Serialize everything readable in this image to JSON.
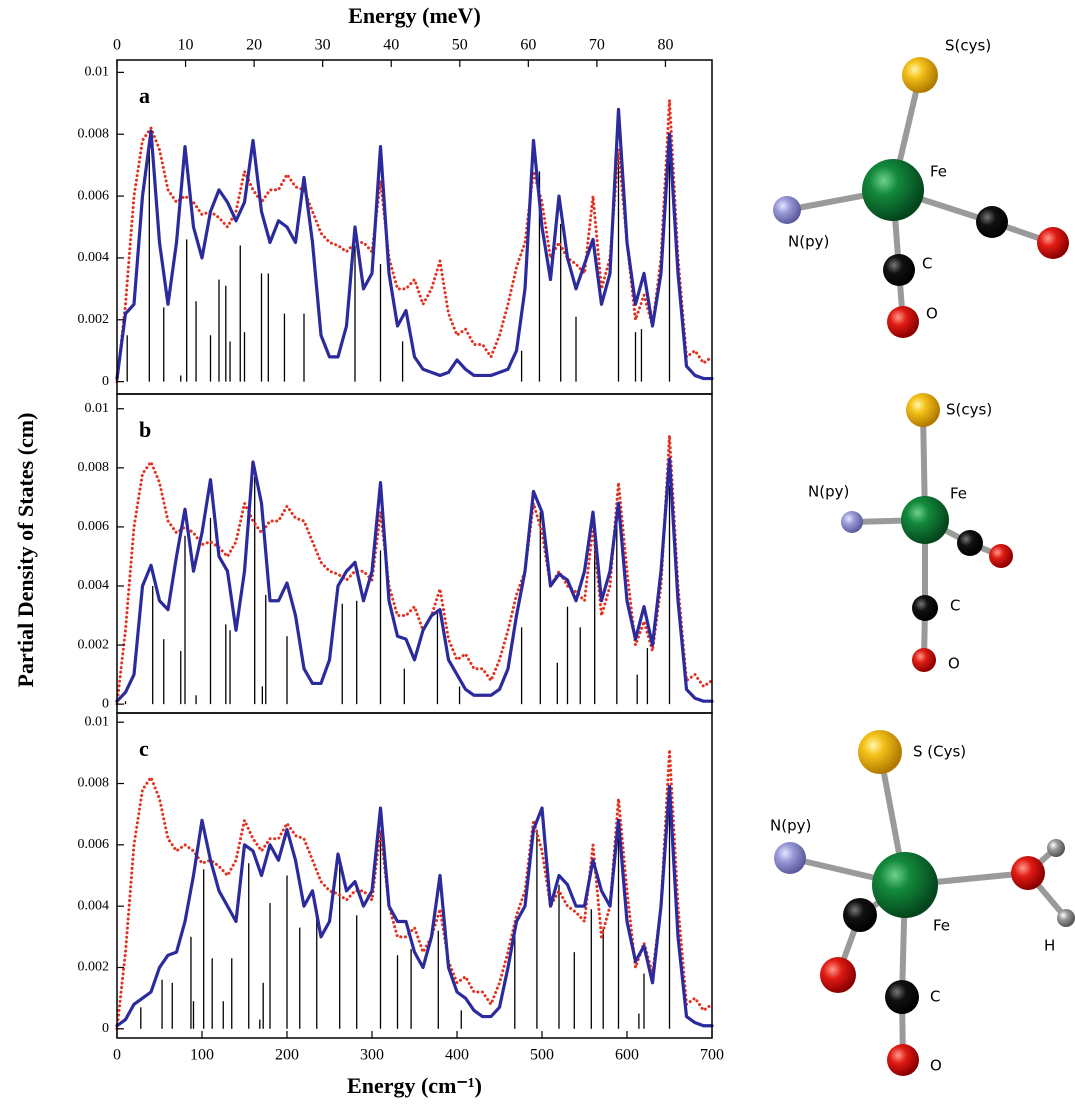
{
  "figure": {
    "ylabel": "Partial Density of States (cm)"
  },
  "chart_data": [
    {
      "type": "line",
      "title": "a",
      "x2label": "Energy (meV)",
      "x2lim": [
        0,
        86.79
      ],
      "x2ticks": [
        0,
        10,
        20,
        30,
        40,
        50,
        60,
        70,
        80
      ],
      "xlim": [
        0,
        700
      ],
      "ylim": [
        -0.0004,
        0.0104
      ],
      "yticks": [
        0,
        0.002,
        0.004,
        0.006,
        0.008,
        0.01
      ],
      "x": [
        0,
        10,
        20,
        30,
        40,
        50,
        60,
        70,
        80,
        90,
        100,
        110,
        120,
        130,
        140,
        150,
        160,
        170,
        180,
        190,
        200,
        210,
        220,
        230,
        240,
        250,
        260,
        270,
        280,
        290,
        300,
        310,
        320,
        330,
        340,
        350,
        360,
        370,
        380,
        390,
        400,
        410,
        420,
        430,
        440,
        450,
        460,
        470,
        480,
        490,
        500,
        510,
        520,
        530,
        540,
        550,
        560,
        570,
        580,
        590,
        600,
        610,
        620,
        630,
        640,
        650,
        660,
        670,
        680,
        690,
        700
      ],
      "series": [
        {
          "color": "#2b2b9e",
          "style": "solid",
          "values": [
            0.0001,
            0.0022,
            0.0025,
            0.006,
            0.0081,
            0.0045,
            0.0025,
            0.0045,
            0.0076,
            0.005,
            0.004,
            0.0055,
            0.0062,
            0.0058,
            0.0052,
            0.0058,
            0.0078,
            0.0055,
            0.0045,
            0.0052,
            0.005,
            0.0045,
            0.0066,
            0.0045,
            0.0015,
            0.0008,
            0.0008,
            0.0018,
            0.005,
            0.003,
            0.0035,
            0.0076,
            0.0035,
            0.0018,
            0.0023,
            0.0008,
            0.0004,
            0.0003,
            0.0002,
            0.0003,
            0.0007,
            0.0004,
            0.0002,
            0.0002,
            0.0002,
            0.0003,
            0.0004,
            0.001,
            0.003,
            0.0078,
            0.005,
            0.0033,
            0.006,
            0.004,
            0.003,
            0.0038,
            0.0046,
            0.0025,
            0.0035,
            0.0088,
            0.0045,
            0.0025,
            0.0035,
            0.0018,
            0.0035,
            0.008,
            0.0035,
            0.0005,
            0.0002,
            0.0001,
            0.0001
          ]
        },
        {
          "color": "#e3321f",
          "style": "dotted",
          "values": [
            0,
            0.0025,
            0.006,
            0.0078,
            0.0082,
            0.0075,
            0.0062,
            0.0058,
            0.006,
            0.0058,
            0.0054,
            0.0055,
            0.0053,
            0.005,
            0.0055,
            0.0068,
            0.0062,
            0.0058,
            0.0062,
            0.0062,
            0.0067,
            0.0063,
            0.0062,
            0.0055,
            0.0048,
            0.0045,
            0.0044,
            0.0042,
            0.0045,
            0.0045,
            0.0042,
            0.0065,
            0.004,
            0.003,
            0.003,
            0.0033,
            0.0025,
            0.003,
            0.0039,
            0.0022,
            0.0015,
            0.0017,
            0.0012,
            0.0012,
            0.0008,
            0.0015,
            0.0025,
            0.0037,
            0.0045,
            0.0068,
            0.0058,
            0.004,
            0.0045,
            0.004,
            0.0038,
            0.0035,
            0.006,
            0.003,
            0.004,
            0.0075,
            0.0045,
            0.002,
            0.0028,
            0.0018,
            0.004,
            0.0091,
            0.004,
            0.0008,
            0.001,
            0.0006,
            0.0008
          ]
        }
      ],
      "sticks": {
        "color": "#000000",
        "x": [
          12,
          38,
          55,
          75,
          82,
          93,
          110,
          120,
          128,
          133,
          145,
          150,
          170,
          178,
          197,
          220,
          280,
          310,
          336,
          476,
          497,
          522,
          540,
          590,
          610,
          617,
          650
        ],
        "values": [
          0.0015,
          0.0075,
          0.0024,
          0.0002,
          0.0046,
          0.0026,
          0.0015,
          0.0033,
          0.0031,
          0.0013,
          0.0044,
          0.0016,
          0.0035,
          0.0035,
          0.0022,
          0.0022,
          0.0044,
          0.0038,
          0.0013,
          0.001,
          0.0068,
          0.0051,
          0.0021,
          0.0073,
          0.0016,
          0.0017,
          0.0079
        ]
      }
    },
    {
      "type": "line",
      "title": "b",
      "xlim": [
        0,
        700
      ],
      "ylim": [
        -0.0003,
        0.0105
      ],
      "yticks": [
        0,
        0.002,
        0.004,
        0.006,
        0.008,
        0.01
      ],
      "x": [
        0,
        10,
        20,
        30,
        40,
        50,
        60,
        70,
        80,
        90,
        100,
        110,
        120,
        130,
        140,
        150,
        160,
        170,
        180,
        190,
        200,
        210,
        220,
        230,
        240,
        250,
        260,
        270,
        280,
        290,
        300,
        310,
        320,
        330,
        340,
        350,
        360,
        370,
        380,
        390,
        400,
        410,
        420,
        430,
        440,
        450,
        460,
        470,
        480,
        490,
        500,
        510,
        520,
        530,
        540,
        550,
        560,
        570,
        580,
        590,
        600,
        610,
        620,
        630,
        640,
        650,
        660,
        670,
        680,
        690,
        700
      ],
      "series": [
        {
          "color": "#2b2b9e",
          "style": "solid",
          "values": [
            0.0001,
            0.0004,
            0.001,
            0.004,
            0.0047,
            0.0035,
            0.0032,
            0.005,
            0.0066,
            0.0045,
            0.0058,
            0.0076,
            0.005,
            0.0045,
            0.0025,
            0.0045,
            0.0082,
            0.0068,
            0.0035,
            0.0035,
            0.0041,
            0.003,
            0.0012,
            0.0007,
            0.0007,
            0.0015,
            0.004,
            0.0045,
            0.0048,
            0.0035,
            0.0045,
            0.0075,
            0.0035,
            0.0023,
            0.0022,
            0.0015,
            0.0025,
            0.003,
            0.0032,
            0.0015,
            0.001,
            0.0005,
            0.0003,
            0.0003,
            0.0003,
            0.0005,
            0.0012,
            0.003,
            0.0045,
            0.0072,
            0.0065,
            0.004,
            0.0044,
            0.0042,
            0.0035,
            0.0045,
            0.0065,
            0.0035,
            0.0045,
            0.0068,
            0.0035,
            0.0022,
            0.0033,
            0.002,
            0.0045,
            0.0083,
            0.0035,
            0.0005,
            0.0002,
            0.0001,
            0.0001
          ]
        },
        {
          "color": "#e3321f",
          "style": "dotted",
          "values": [
            0,
            0.0025,
            0.006,
            0.0078,
            0.0082,
            0.0075,
            0.0062,
            0.0058,
            0.006,
            0.0058,
            0.0054,
            0.0055,
            0.0053,
            0.005,
            0.0055,
            0.0068,
            0.0062,
            0.0058,
            0.0062,
            0.0062,
            0.0067,
            0.0063,
            0.0062,
            0.0055,
            0.0048,
            0.0045,
            0.0044,
            0.0042,
            0.0045,
            0.0045,
            0.0042,
            0.0065,
            0.004,
            0.003,
            0.003,
            0.0033,
            0.0025,
            0.003,
            0.0039,
            0.0022,
            0.0015,
            0.0017,
            0.0012,
            0.0012,
            0.0008,
            0.0015,
            0.0025,
            0.0037,
            0.0045,
            0.0068,
            0.0058,
            0.004,
            0.0045,
            0.004,
            0.0038,
            0.0035,
            0.006,
            0.003,
            0.004,
            0.0075,
            0.0045,
            0.002,
            0.0028,
            0.0018,
            0.004,
            0.0091,
            0.004,
            0.0008,
            0.001,
            0.0006,
            0.0008
          ]
        }
      ],
      "sticks": {
        "color": "#000000",
        "x": [
          10,
          42,
          55,
          75,
          80,
          93,
          110,
          128,
          133,
          162,
          171,
          175,
          200,
          265,
          282,
          310,
          338,
          377,
          403,
          476,
          498,
          518,
          530,
          545,
          562,
          588,
          612,
          624,
          650
        ],
        "values": [
          0.0001,
          0.004,
          0.0022,
          0.0018,
          0.0057,
          0.0003,
          0.0063,
          0.0027,
          0.0025,
          0.0077,
          0.0006,
          0.0037,
          0.0023,
          0.0034,
          0.0035,
          0.0052,
          0.0012,
          0.0032,
          0.0006,
          0.0026,
          0.0065,
          0.0014,
          0.0033,
          0.0026,
          0.0058,
          0.0064,
          0.001,
          0.0019,
          0.0074
        ]
      }
    },
    {
      "type": "line",
      "title": "c",
      "xlabel": "Energy (cm⁻¹)",
      "xlim": [
        0,
        700
      ],
      "xticks": [
        0,
        100,
        200,
        300,
        400,
        500,
        600,
        700
      ],
      "ylim": [
        -0.0003,
        0.0103
      ],
      "yticks": [
        0,
        0.002,
        0.004,
        0.006,
        0.008,
        0.01
      ],
      "x": [
        0,
        10,
        20,
        30,
        40,
        50,
        60,
        70,
        80,
        90,
        100,
        110,
        120,
        130,
        140,
        150,
        160,
        170,
        180,
        190,
        200,
        210,
        220,
        230,
        240,
        250,
        260,
        270,
        280,
        290,
        300,
        310,
        320,
        330,
        340,
        350,
        360,
        370,
        380,
        390,
        400,
        410,
        420,
        430,
        440,
        450,
        460,
        470,
        480,
        490,
        500,
        510,
        520,
        530,
        540,
        550,
        560,
        570,
        580,
        590,
        600,
        610,
        620,
        630,
        640,
        650,
        660,
        670,
        680,
        690,
        700
      ],
      "series": [
        {
          "color": "#2b2b9e",
          "style": "solid",
          "values": [
            0.0001,
            0.0003,
            0.0008,
            0.001,
            0.0012,
            0.002,
            0.0024,
            0.0025,
            0.0035,
            0.005,
            0.0068,
            0.0055,
            0.0045,
            0.004,
            0.0035,
            0.006,
            0.0058,
            0.005,
            0.006,
            0.0055,
            0.0065,
            0.0055,
            0.004,
            0.0045,
            0.003,
            0.0035,
            0.0057,
            0.0045,
            0.0048,
            0.004,
            0.0045,
            0.0072,
            0.004,
            0.0035,
            0.0035,
            0.0025,
            0.002,
            0.003,
            0.005,
            0.002,
            0.0012,
            0.001,
            0.0006,
            0.0004,
            0.0004,
            0.0007,
            0.002,
            0.0035,
            0.004,
            0.0065,
            0.0072,
            0.004,
            0.005,
            0.0047,
            0.004,
            0.004,
            0.0055,
            0.0045,
            0.004,
            0.0068,
            0.0035,
            0.0022,
            0.0027,
            0.0015,
            0.004,
            0.0079,
            0.003,
            0.0004,
            0.0002,
            0.0001,
            0.0001
          ]
        },
        {
          "color": "#e3321f",
          "style": "dotted",
          "values": [
            0,
            0.0025,
            0.006,
            0.0078,
            0.0082,
            0.0075,
            0.0062,
            0.0058,
            0.006,
            0.0058,
            0.0054,
            0.0055,
            0.0053,
            0.005,
            0.0055,
            0.0068,
            0.0062,
            0.0058,
            0.0062,
            0.0062,
            0.0067,
            0.0063,
            0.0062,
            0.0055,
            0.0048,
            0.0045,
            0.0044,
            0.0042,
            0.0045,
            0.0045,
            0.0042,
            0.0065,
            0.004,
            0.003,
            0.003,
            0.0033,
            0.0025,
            0.003,
            0.0039,
            0.0022,
            0.0015,
            0.0017,
            0.0012,
            0.0012,
            0.0008,
            0.0015,
            0.0025,
            0.0037,
            0.0045,
            0.0068,
            0.0058,
            0.004,
            0.0045,
            0.004,
            0.0038,
            0.0035,
            0.006,
            0.003,
            0.004,
            0.0075,
            0.0045,
            0.002,
            0.0028,
            0.0018,
            0.004,
            0.0091,
            0.004,
            0.0008,
            0.001,
            0.0006,
            0.0008
          ]
        }
      ],
      "sticks": {
        "color": "#000000",
        "x": [
          28,
          53,
          65,
          87,
          90,
          102,
          112,
          125,
          135,
          155,
          168,
          172,
          180,
          200,
          215,
          235,
          262,
          282,
          310,
          330,
          346,
          378,
          405,
          468,
          494,
          520,
          538,
          558,
          572,
          590,
          614,
          620,
          650
        ],
        "values": [
          0.0007,
          0.0016,
          0.0015,
          0.003,
          0.0009,
          0.0052,
          0.0023,
          0.0009,
          0.0023,
          0.0054,
          0.0003,
          0.0015,
          0.0041,
          0.005,
          0.0033,
          0.0037,
          0.0056,
          0.0037,
          0.0064,
          0.0024,
          0.0026,
          0.0032,
          0.0006,
          0.0032,
          0.0065,
          0.0047,
          0.0025,
          0.0039,
          0.0033,
          0.0062,
          0.0005,
          0.0018,
          0.0074
        ]
      }
    }
  ],
  "structures": [
    {
      "labels": [
        "S(cys)",
        "Fe",
        "N(py)",
        "C",
        "O"
      ]
    },
    {
      "labels": [
        "S(cys)",
        "N(py)",
        "Fe",
        "C",
        "O"
      ]
    },
    {
      "labels": [
        "S (Cys)",
        "N(py)",
        "Fe",
        "H",
        "C",
        "O"
      ]
    }
  ]
}
